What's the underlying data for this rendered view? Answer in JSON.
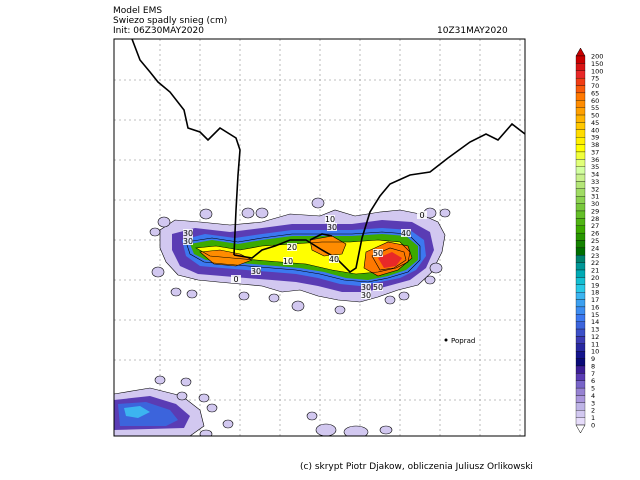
{
  "header": {
    "model": "Model EMS",
    "variable": "Swiezo spadly snieg (cm)",
    "init": "Init: 06Z30MAY2020",
    "valid": "10Z31MAY2020"
  },
  "map": {
    "city": "Poprad",
    "contour_labels": [
      "30",
      "30",
      "30",
      "20",
      "10",
      "10",
      "30",
      "40",
      "40",
      "50",
      "50",
      "30",
      "30",
      "0",
      "0"
    ]
  },
  "colorbar": {
    "levels": [
      "200",
      "150",
      "100",
      "75",
      "70",
      "65",
      "60",
      "55",
      "50",
      "45",
      "40",
      "39",
      "38",
      "37",
      "36",
      "35",
      "34",
      "33",
      "32",
      "31",
      "30",
      "29",
      "28",
      "27",
      "26",
      "25",
      "24",
      "23",
      "22",
      "21",
      "20",
      "19",
      "18",
      "17",
      "16",
      "15",
      "14",
      "13",
      "12",
      "11",
      "10",
      "9",
      "8",
      "7",
      "6",
      "5",
      "4",
      "3",
      "2",
      "1",
      "0"
    ],
    "colors": [
      "#c80000",
      "#d81414",
      "#e82828",
      "#f03c14",
      "#f85a0a",
      "#ff7800",
      "#ff8c00",
      "#ffa000",
      "#ffb400",
      "#ffc800",
      "#ffdc00",
      "#fff000",
      "#ffff00",
      "#f0ff3c",
      "#e1ff78",
      "#d2ffa0",
      "#c8f08c",
      "#b4e678",
      "#a0dc64",
      "#8cd250",
      "#78c83c",
      "#64be28",
      "#50b414",
      "#3caa00",
      "#289600",
      "#148200",
      "#006e00",
      "#00826e",
      "#009696",
      "#00aab4",
      "#14bed2",
      "#28c8e6",
      "#3cb4f0",
      "#3ca0f0",
      "#3c8cf0",
      "#3c78f0",
      "#3c64dc",
      "#3c50c8",
      "#3c3cb4",
      "#2828a0",
      "#14148c",
      "#0a0a78",
      "#3c1e96",
      "#5a3cb4",
      "#7864c8",
      "#9682d2",
      "#aa96dc",
      "#beb4e6",
      "#d2c8f0",
      "#e6dcfa",
      "#ffffff"
    ]
  },
  "credit": "(c) skrypt Piotr Djakow, obliczenia Juliusz Orlikowski"
}
